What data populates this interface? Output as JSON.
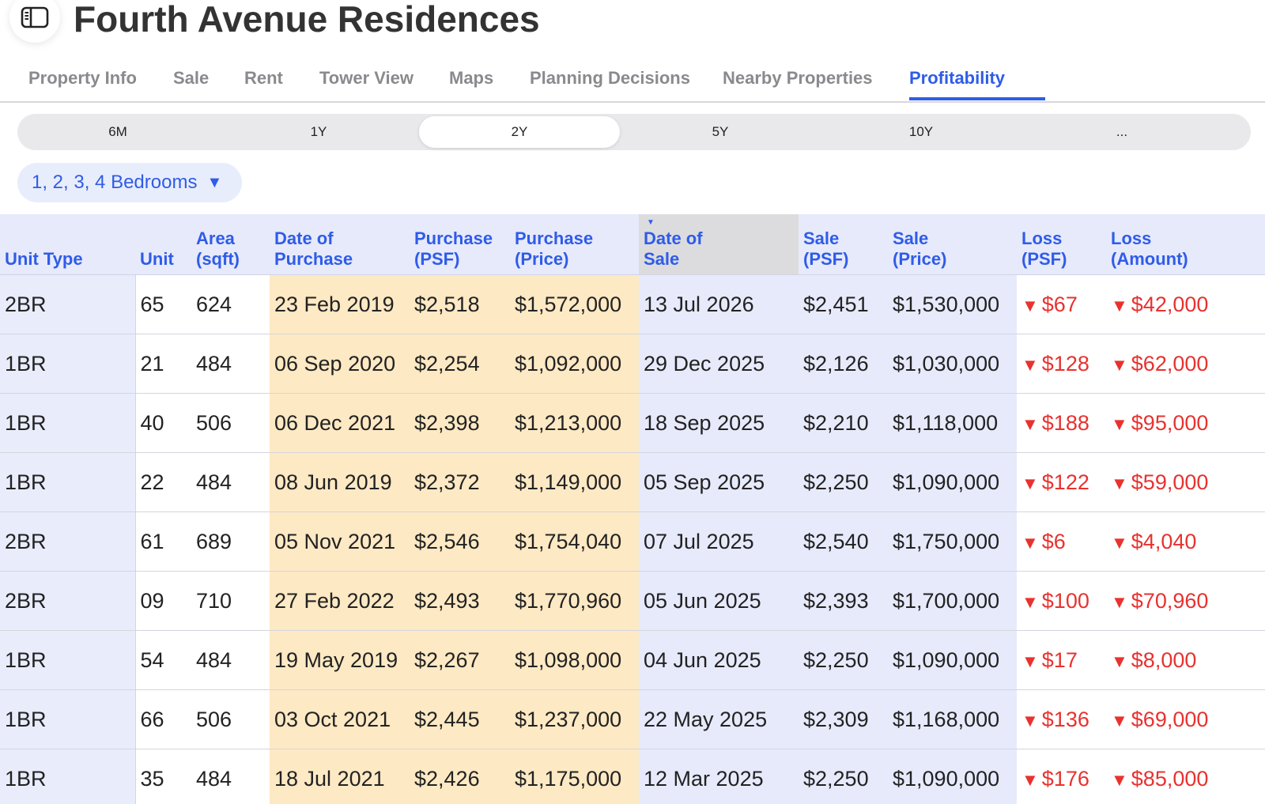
{
  "app": {
    "title": "Fourth Avenue Residences",
    "sidebar_icon": "sidebar-toggle-icon"
  },
  "tabs": [
    {
      "label": "Property Info",
      "active": false
    },
    {
      "label": "Sale",
      "active": false
    },
    {
      "label": "Rent",
      "active": false
    },
    {
      "label": "Tower View",
      "active": false
    },
    {
      "label": "Maps",
      "active": false
    },
    {
      "label": "Planning Decisions",
      "active": false
    },
    {
      "label": "Nearby Properties",
      "active": false
    },
    {
      "label": "Profitability",
      "active": true
    }
  ],
  "time_range": {
    "options": [
      "6M",
      "1Y",
      "2Y",
      "5Y",
      "10Y",
      "..."
    ],
    "selected": "2Y"
  },
  "bedroom_filter": {
    "label": "1, 2, 3, 4 Bedrooms",
    "caret": "▼"
  },
  "colors": {
    "accent": "#2f5ce8",
    "loss": "#e8322f",
    "purchase_bg": "#fde9c4",
    "sale_bg": "#e7eafb"
  },
  "table": {
    "sorted_column": "Date of Sale",
    "sort_direction": "descending",
    "loss_indicator": "▼",
    "columns": [
      {
        "line1": "Unit Type",
        "line2": ""
      },
      {
        "line1": "Unit",
        "line2": ""
      },
      {
        "line1": "Area",
        "line2": "(sqft)"
      },
      {
        "line1": "Date of",
        "line2": "Purchase"
      },
      {
        "line1": "Purchase",
        "line2": "(PSF)"
      },
      {
        "line1": "Purchase",
        "line2": "(Price)"
      },
      {
        "line1": "Date of",
        "line2": "Sale"
      },
      {
        "line1": "Sale",
        "line2": "(PSF)"
      },
      {
        "line1": "Sale",
        "line2": "(Price)"
      },
      {
        "line1": "Loss",
        "line2": "(PSF)"
      },
      {
        "line1": "Loss",
        "line2": "(Amount)"
      }
    ],
    "rows": [
      {
        "unit_type": "2BR",
        "unit": "65",
        "area": "624",
        "purchase_date": "23 Feb 2019",
        "purchase_psf": "$2,518",
        "purchase_price": "$1,572,000",
        "sale_date": "13 Jul 2026",
        "sale_psf": "$2,451",
        "sale_price": "$1,530,000",
        "loss_psf": "$67",
        "loss_amount": "$42,000"
      },
      {
        "unit_type": "1BR",
        "unit": "21",
        "area": "484",
        "purchase_date": "06 Sep 2020",
        "purchase_psf": "$2,254",
        "purchase_price": "$1,092,000",
        "sale_date": "29 Dec 2025",
        "sale_psf": "$2,126",
        "sale_price": "$1,030,000",
        "loss_psf": "$128",
        "loss_amount": "$62,000"
      },
      {
        "unit_type": "1BR",
        "unit": "40",
        "area": "506",
        "purchase_date": "06 Dec 2021",
        "purchase_psf": "$2,398",
        "purchase_price": "$1,213,000",
        "sale_date": "18 Sep 2025",
        "sale_psf": "$2,210",
        "sale_price": "$1,118,000",
        "loss_psf": "$188",
        "loss_amount": "$95,000"
      },
      {
        "unit_type": "1BR",
        "unit": "22",
        "area": "484",
        "purchase_date": "08 Jun 2019",
        "purchase_psf": "$2,372",
        "purchase_price": "$1,149,000",
        "sale_date": "05 Sep 2025",
        "sale_psf": "$2,250",
        "sale_price": "$1,090,000",
        "loss_psf": "$122",
        "loss_amount": "$59,000"
      },
      {
        "unit_type": "2BR",
        "unit": "61",
        "area": "689",
        "purchase_date": "05 Nov 2021",
        "purchase_psf": "$2,546",
        "purchase_price": "$1,754,040",
        "sale_date": "07 Jul 2025",
        "sale_psf": "$2,540",
        "sale_price": "$1,750,000",
        "loss_psf": "$6",
        "loss_amount": "$4,040"
      },
      {
        "unit_type": "2BR",
        "unit": "09",
        "area": "710",
        "purchase_date": "27 Feb 2022",
        "purchase_psf": "$2,493",
        "purchase_price": "$1,770,960",
        "sale_date": "05 Jun 2025",
        "sale_psf": "$2,393",
        "sale_price": "$1,700,000",
        "loss_psf": "$100",
        "loss_amount": "$70,960"
      },
      {
        "unit_type": "1BR",
        "unit": "54",
        "area": "484",
        "purchase_date": "19 May 2019",
        "purchase_psf": "$2,267",
        "purchase_price": "$1,098,000",
        "sale_date": "04 Jun 2025",
        "sale_psf": "$2,250",
        "sale_price": "$1,090,000",
        "loss_psf": "$17",
        "loss_amount": "$8,000"
      },
      {
        "unit_type": "1BR",
        "unit": "66",
        "area": "506",
        "purchase_date": "03 Oct 2021",
        "purchase_psf": "$2,445",
        "purchase_price": "$1,237,000",
        "sale_date": "22 May 2025",
        "sale_psf": "$2,309",
        "sale_price": "$1,168,000",
        "loss_psf": "$136",
        "loss_amount": "$69,000"
      },
      {
        "unit_type": "1BR",
        "unit": "35",
        "area": "484",
        "purchase_date": "18 Jul 2021",
        "purchase_psf": "$2,426",
        "purchase_price": "$1,175,000",
        "sale_date": "12 Mar 2025",
        "sale_psf": "$2,250",
        "sale_price": "$1,090,000",
        "loss_psf": "$176",
        "loss_amount": "$85,000"
      }
    ]
  }
}
